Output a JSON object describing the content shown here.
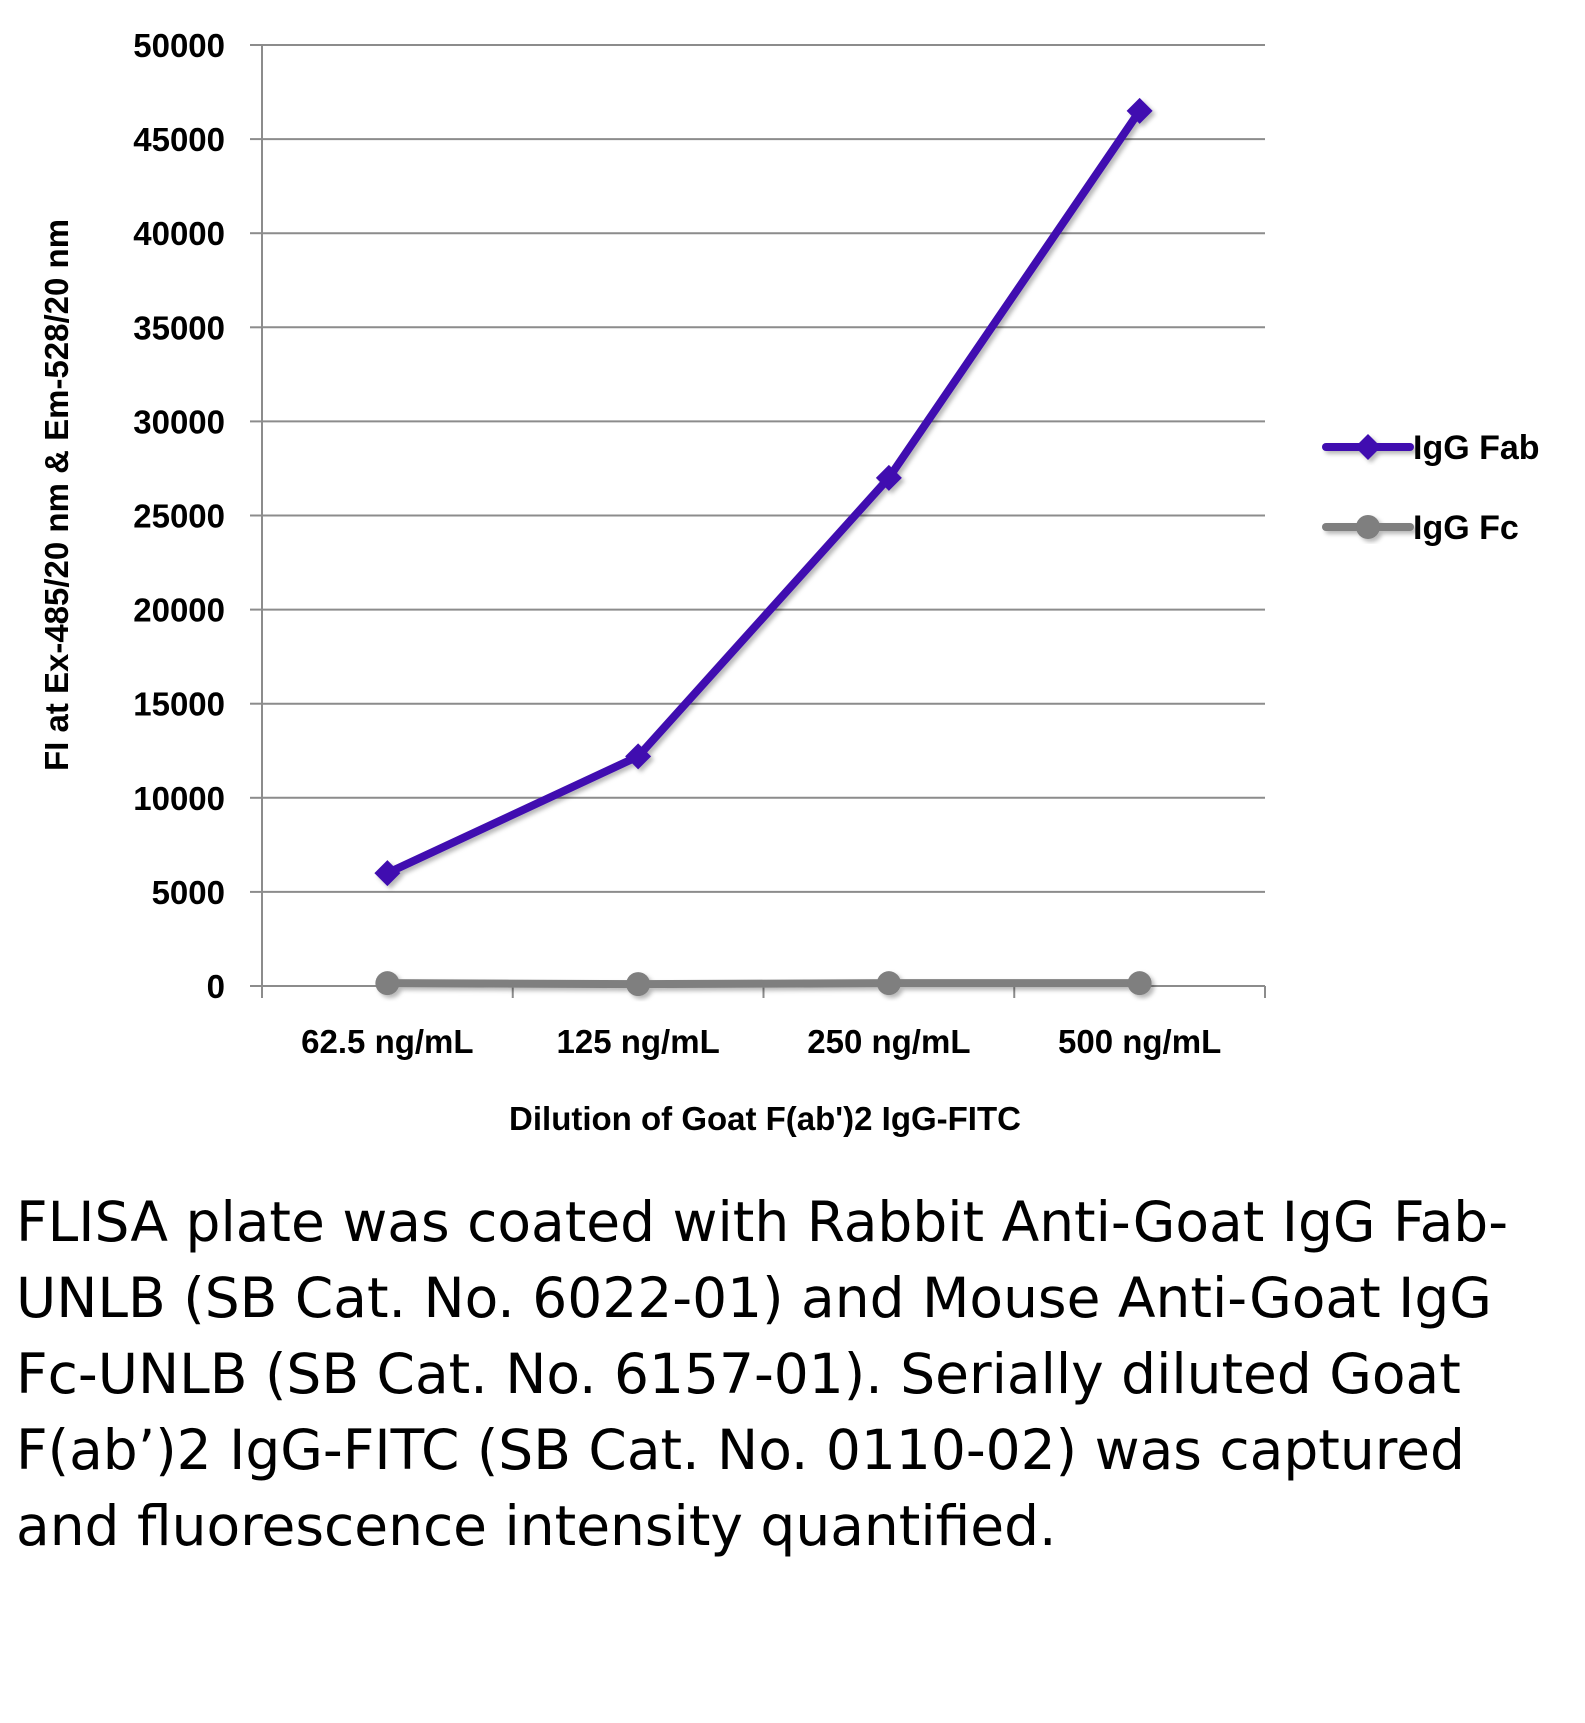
{
  "chart_data": {
    "type": "line",
    "title": "",
    "categories": [
      "62.5 ng/mL",
      "125 ng/mL",
      "250 ng/mL",
      "500 ng/mL"
    ],
    "series": [
      {
        "name": "IgG Fab",
        "values": [
          6000,
          12200,
          27000,
          46500
        ],
        "color": "#3f0fb0",
        "marker": "diamond"
      },
      {
        "name": "IgG Fc",
        "values": [
          150,
          100,
          150,
          150
        ],
        "color": "#7f7f7f",
        "marker": "circle"
      }
    ],
    "xlabel": "Dilution of Goat F(ab')2 IgG-FITC",
    "ylabel": "FI at Ex-485/20 nm & Em-528/20 nm",
    "ylim": [
      0,
      50000
    ],
    "yticks": [
      0,
      5000,
      10000,
      15000,
      20000,
      25000,
      30000,
      35000,
      40000,
      45000,
      50000
    ],
    "grid": true,
    "legend_position": "right"
  },
  "caption": "FLISA plate was coated with Rabbit Anti-Goat IgG Fab-UNLB (SB Cat. No. 6022-01) and Mouse Anti-Goat IgG Fc-UNLB (SB Cat. No. 6157-01).  Serially diluted Goat F(ab’)2 IgG-FITC (SB Cat. No. 0110-02) was captured and fluorescence intensity quantified."
}
